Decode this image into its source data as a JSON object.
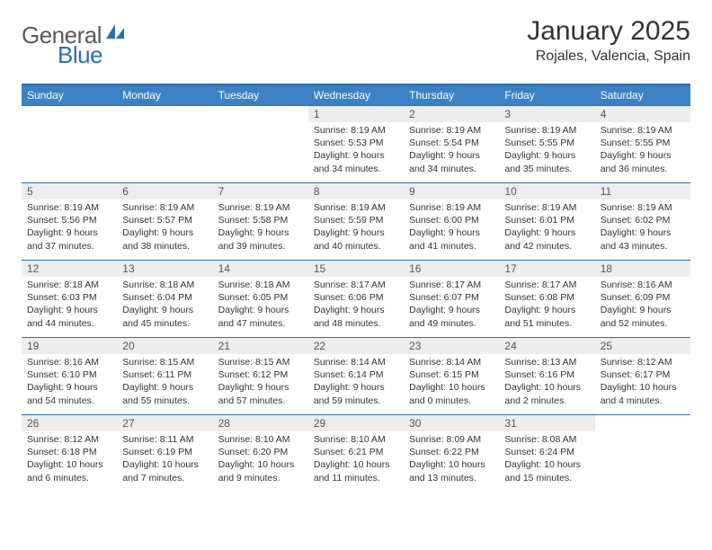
{
  "logo": {
    "text1": "General",
    "text2": "Blue"
  },
  "title": "January 2025",
  "subtitle": "Rojales, Valencia, Spain",
  "colors": {
    "header_bg": "#3b82c4",
    "header_border": "#2f6fb0",
    "daynum_bg": "#ededed",
    "text": "#333333",
    "logo_grey": "#5a5a5a",
    "logo_blue": "#2f6fb0"
  },
  "day_labels": [
    "Sunday",
    "Monday",
    "Tuesday",
    "Wednesday",
    "Thursday",
    "Friday",
    "Saturday"
  ],
  "weeks": [
    [
      {
        "n": "",
        "lines": []
      },
      {
        "n": "",
        "lines": []
      },
      {
        "n": "",
        "lines": []
      },
      {
        "n": "1",
        "lines": [
          "Sunrise: 8:19 AM",
          "Sunset: 5:53 PM",
          "Daylight: 9 hours",
          "and 34 minutes."
        ]
      },
      {
        "n": "2",
        "lines": [
          "Sunrise: 8:19 AM",
          "Sunset: 5:54 PM",
          "Daylight: 9 hours",
          "and 34 minutes."
        ]
      },
      {
        "n": "3",
        "lines": [
          "Sunrise: 8:19 AM",
          "Sunset: 5:55 PM",
          "Daylight: 9 hours",
          "and 35 minutes."
        ]
      },
      {
        "n": "4",
        "lines": [
          "Sunrise: 8:19 AM",
          "Sunset: 5:55 PM",
          "Daylight: 9 hours",
          "and 36 minutes."
        ]
      }
    ],
    [
      {
        "n": "5",
        "lines": [
          "Sunrise: 8:19 AM",
          "Sunset: 5:56 PM",
          "Daylight: 9 hours",
          "and 37 minutes."
        ]
      },
      {
        "n": "6",
        "lines": [
          "Sunrise: 8:19 AM",
          "Sunset: 5:57 PM",
          "Daylight: 9 hours",
          "and 38 minutes."
        ]
      },
      {
        "n": "7",
        "lines": [
          "Sunrise: 8:19 AM",
          "Sunset: 5:58 PM",
          "Daylight: 9 hours",
          "and 39 minutes."
        ]
      },
      {
        "n": "8",
        "lines": [
          "Sunrise: 8:19 AM",
          "Sunset: 5:59 PM",
          "Daylight: 9 hours",
          "and 40 minutes."
        ]
      },
      {
        "n": "9",
        "lines": [
          "Sunrise: 8:19 AM",
          "Sunset: 6:00 PM",
          "Daylight: 9 hours",
          "and 41 minutes."
        ]
      },
      {
        "n": "10",
        "lines": [
          "Sunrise: 8:19 AM",
          "Sunset: 6:01 PM",
          "Daylight: 9 hours",
          "and 42 minutes."
        ]
      },
      {
        "n": "11",
        "lines": [
          "Sunrise: 8:19 AM",
          "Sunset: 6:02 PM",
          "Daylight: 9 hours",
          "and 43 minutes."
        ]
      }
    ],
    [
      {
        "n": "12",
        "lines": [
          "Sunrise: 8:18 AM",
          "Sunset: 6:03 PM",
          "Daylight: 9 hours",
          "and 44 minutes."
        ]
      },
      {
        "n": "13",
        "lines": [
          "Sunrise: 8:18 AM",
          "Sunset: 6:04 PM",
          "Daylight: 9 hours",
          "and 45 minutes."
        ]
      },
      {
        "n": "14",
        "lines": [
          "Sunrise: 8:18 AM",
          "Sunset: 6:05 PM",
          "Daylight: 9 hours",
          "and 47 minutes."
        ]
      },
      {
        "n": "15",
        "lines": [
          "Sunrise: 8:17 AM",
          "Sunset: 6:06 PM",
          "Daylight: 9 hours",
          "and 48 minutes."
        ]
      },
      {
        "n": "16",
        "lines": [
          "Sunrise: 8:17 AM",
          "Sunset: 6:07 PM",
          "Daylight: 9 hours",
          "and 49 minutes."
        ]
      },
      {
        "n": "17",
        "lines": [
          "Sunrise: 8:17 AM",
          "Sunset: 6:08 PM",
          "Daylight: 9 hours",
          "and 51 minutes."
        ]
      },
      {
        "n": "18",
        "lines": [
          "Sunrise: 8:16 AM",
          "Sunset: 6:09 PM",
          "Daylight: 9 hours",
          "and 52 minutes."
        ]
      }
    ],
    [
      {
        "n": "19",
        "lines": [
          "Sunrise: 8:16 AM",
          "Sunset: 6:10 PM",
          "Daylight: 9 hours",
          "and 54 minutes."
        ]
      },
      {
        "n": "20",
        "lines": [
          "Sunrise: 8:15 AM",
          "Sunset: 6:11 PM",
          "Daylight: 9 hours",
          "and 55 minutes."
        ]
      },
      {
        "n": "21",
        "lines": [
          "Sunrise: 8:15 AM",
          "Sunset: 6:12 PM",
          "Daylight: 9 hours",
          "and 57 minutes."
        ]
      },
      {
        "n": "22",
        "lines": [
          "Sunrise: 8:14 AM",
          "Sunset: 6:14 PM",
          "Daylight: 9 hours",
          "and 59 minutes."
        ]
      },
      {
        "n": "23",
        "lines": [
          "Sunrise: 8:14 AM",
          "Sunset: 6:15 PM",
          "Daylight: 10 hours",
          "and 0 minutes."
        ]
      },
      {
        "n": "24",
        "lines": [
          "Sunrise: 8:13 AM",
          "Sunset: 6:16 PM",
          "Daylight: 10 hours",
          "and 2 minutes."
        ]
      },
      {
        "n": "25",
        "lines": [
          "Sunrise: 8:12 AM",
          "Sunset: 6:17 PM",
          "Daylight: 10 hours",
          "and 4 minutes."
        ]
      }
    ],
    [
      {
        "n": "26",
        "lines": [
          "Sunrise: 8:12 AM",
          "Sunset: 6:18 PM",
          "Daylight: 10 hours",
          "and 6 minutes."
        ]
      },
      {
        "n": "27",
        "lines": [
          "Sunrise: 8:11 AM",
          "Sunset: 6:19 PM",
          "Daylight: 10 hours",
          "and 7 minutes."
        ]
      },
      {
        "n": "28",
        "lines": [
          "Sunrise: 8:10 AM",
          "Sunset: 6:20 PM",
          "Daylight: 10 hours",
          "and 9 minutes."
        ]
      },
      {
        "n": "29",
        "lines": [
          "Sunrise: 8:10 AM",
          "Sunset: 6:21 PM",
          "Daylight: 10 hours",
          "and 11 minutes."
        ]
      },
      {
        "n": "30",
        "lines": [
          "Sunrise: 8:09 AM",
          "Sunset: 6:22 PM",
          "Daylight: 10 hours",
          "and 13 minutes."
        ]
      },
      {
        "n": "31",
        "lines": [
          "Sunrise: 8:08 AM",
          "Sunset: 6:24 PM",
          "Daylight: 10 hours",
          "and 15 minutes."
        ]
      },
      {
        "n": "",
        "lines": []
      }
    ]
  ]
}
